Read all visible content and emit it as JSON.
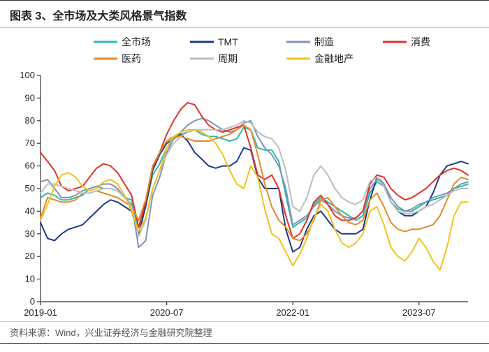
{
  "title": "图表 3、全市场及大类风格景气指数",
  "source": "资料来源：Wind，兴业证券经济与金融研究院整理",
  "chart": {
    "type": "line",
    "background_color": "#ffffff",
    "axis_color": "#333333",
    "font_family": "Microsoft YaHei, SimSun, Arial, sans-serif",
    "tick_fontsize": 13,
    "legend_fontsize": 14,
    "title_fontsize": 16,
    "line_width": 2,
    "y": {
      "min": 0,
      "max": 100,
      "step": 10
    },
    "x": {
      "n_points": 62,
      "tick_positions": [
        0,
        18,
        36,
        54
      ],
      "tick_labels": [
        "2019-01",
        "2020-07",
        "2022-01",
        "2023-07"
      ]
    },
    "legend": {
      "rows": [
        [
          {
            "key": "whole_market",
            "label": "全市场"
          },
          {
            "key": "tmt",
            "label": "TMT"
          },
          {
            "key": "manufacturing",
            "label": "制造"
          },
          {
            "key": "consumer",
            "label": "消费"
          }
        ],
        [
          {
            "key": "pharma",
            "label": "医药"
          },
          {
            "key": "cyclical",
            "label": "周期"
          },
          {
            "key": "financial_realestate",
            "label": "金融地产"
          }
        ]
      ]
    },
    "series": {
      "whole_market": {
        "label": "全市场",
        "color": "#2bbab0",
        "values": [
          46,
          48,
          47,
          45,
          45,
          46,
          47,
          50,
          51,
          50,
          50,
          49,
          46,
          45,
          30,
          42,
          56,
          61,
          68,
          72,
          74,
          75,
          76,
          74,
          73,
          73,
          72,
          71,
          72,
          77,
          76,
          68,
          67,
          67,
          62,
          47,
          33,
          35,
          37,
          43,
          46,
          44,
          42,
          40,
          38,
          36,
          38,
          48,
          53,
          51,
          44,
          41,
          40,
          40,
          42,
          44,
          45,
          46,
          47,
          50,
          51,
          52
        ]
      },
      "tmt": {
        "label": "TMT",
        "color": "#1b3b8b",
        "values": [
          35,
          28,
          27,
          30,
          32,
          33,
          34,
          37,
          40,
          43,
          45,
          44,
          42,
          40,
          30,
          42,
          58,
          65,
          70,
          72,
          74,
          71,
          66,
          63,
          60,
          59,
          60,
          60,
          62,
          68,
          67,
          55,
          50,
          50,
          50,
          32,
          22,
          24,
          32,
          38,
          40,
          36,
          32,
          30,
          30,
          30,
          32,
          45,
          55,
          52,
          44,
          40,
          38,
          38,
          40,
          42,
          48,
          56,
          60,
          61,
          62,
          61
        ]
      },
      "manufacturing": {
        "label": "制造",
        "color": "#7d94b7",
        "values": [
          53,
          54,
          50,
          46,
          46,
          47,
          49,
          50,
          51,
          52,
          52,
          50,
          46,
          43,
          24,
          27,
          47,
          55,
          66,
          72,
          75,
          78,
          80,
          81,
          80,
          78,
          76,
          75,
          76,
          79,
          80,
          73,
          68,
          65,
          60,
          50,
          34,
          36,
          38,
          42,
          45,
          43,
          40,
          38,
          37,
          37,
          40,
          50,
          54,
          52,
          46,
          42,
          40,
          41,
          43,
          44,
          46,
          47,
          48,
          50,
          52,
          53
        ]
      },
      "consumer": {
        "label": "消费",
        "color": "#e4322b",
        "values": [
          66,
          62,
          58,
          51,
          49,
          50,
          51,
          55,
          59,
          61,
          60,
          57,
          52,
          47,
          33,
          44,
          59,
          66,
          74,
          80,
          85,
          88,
          87,
          82,
          78,
          76,
          75,
          76,
          77,
          78,
          68,
          56,
          54,
          56,
          50,
          38,
          28,
          30,
          36,
          44,
          47,
          43,
          38,
          36,
          36,
          37,
          40,
          52,
          56,
          55,
          50,
          47,
          45,
          46,
          48,
          50,
          53,
          56,
          58,
          59,
          58,
          56
        ]
      },
      "pharma": {
        "label": "医药",
        "color": "#e48a2b",
        "values": [
          37,
          46,
          45,
          44,
          44,
          45,
          48,
          48,
          49,
          48,
          47,
          46,
          44,
          42,
          36,
          45,
          60,
          66,
          71,
          73,
          73,
          72,
          71,
          71,
          71,
          72,
          73,
          74,
          76,
          78,
          76,
          65,
          52,
          42,
          36,
          33,
          28,
          27,
          30,
          36,
          45,
          46,
          42,
          38,
          35,
          34,
          36,
          45,
          48,
          42,
          35,
          32,
          31,
          32,
          32,
          33,
          34,
          38,
          45,
          52,
          55,
          54
        ]
      },
      "cyclical": {
        "label": "周期",
        "color": "#bdbdbd",
        "values": [
          48,
          52,
          52,
          51,
          50,
          49,
          48,
          48,
          49,
          50,
          50,
          49,
          46,
          42,
          29,
          36,
          50,
          58,
          65,
          70,
          73,
          75,
          76,
          76,
          76,
          76,
          76,
          77,
          78,
          80,
          79,
          75,
          73,
          72,
          68,
          58,
          42,
          40,
          46,
          56,
          60,
          56,
          50,
          46,
          44,
          43,
          45,
          53,
          55,
          51,
          44,
          40,
          39,
          39,
          40,
          42,
          43,
          45,
          47,
          49,
          50,
          50
        ]
      },
      "financial_realestate": {
        "label": "金融地产",
        "color": "#f2c21a",
        "values": [
          36,
          43,
          51,
          56,
          57,
          55,
          51,
          49,
          50,
          53,
          54,
          52,
          47,
          40,
          31,
          37,
          50,
          58,
          68,
          73,
          75,
          76,
          76,
          75,
          73,
          70,
          65,
          58,
          52,
          50,
          60,
          55,
          41,
          30,
          28,
          22,
          16,
          21,
          28,
          37,
          43,
          40,
          32,
          26,
          24,
          26,
          30,
          40,
          42,
          34,
          24,
          20,
          18,
          22,
          28,
          24,
          18,
          14,
          24,
          38,
          44,
          44
        ]
      }
    }
  }
}
